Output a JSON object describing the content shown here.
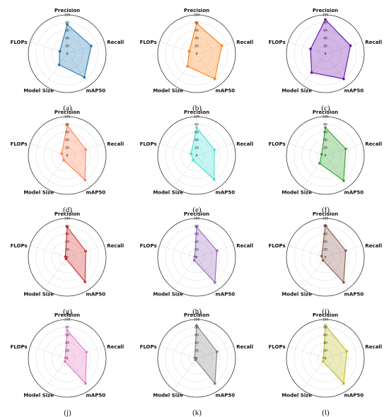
{
  "axes": [
    "Precision",
    "Recall",
    "mAP50",
    "Model Size",
    "FLOPs"
  ],
  "ticks": [
    "0",
    "20",
    "40",
    "60",
    "80",
    "100"
  ],
  "chart_data": [
    {
      "type": "radar",
      "caption": "(a)",
      "color": "#1f77b4",
      "rmax": 100,
      "categories": [
        "Precision",
        "Recall",
        "mAP50",
        "Model Size",
        "FLOPs"
      ],
      "values": [
        75,
        65,
        75,
        35,
        20
      ],
      "grid": true
    },
    {
      "type": "radar",
      "caption": "(b)",
      "color": "#ff7f0e",
      "rmax": 100,
      "categories": [
        "Precision",
        "Recall",
        "mAP50",
        "Model Size",
        "FLOPs"
      ],
      "values": [
        78,
        68,
        80,
        40,
        20
      ],
      "grid": true
    },
    {
      "type": "radar",
      "caption": "(c)",
      "color": "#6a0dad",
      "rmax": 100,
      "categories": [
        "Precision",
        "Recall",
        "mAP50",
        "Model Size",
        "FLOPs"
      ],
      "values": [
        88,
        68,
        80,
        60,
        40
      ],
      "grid": true
    },
    {
      "type": "radar",
      "caption": "(d)",
      "color": "#ff7f50",
      "rmax": 100,
      "categories": [
        "Precision",
        "Recall",
        "mAP50",
        "Model Size",
        "FLOPs"
      ],
      "values": [
        78,
        50,
        78,
        15,
        15
      ],
      "grid": true
    },
    {
      "type": "radar",
      "caption": "(e)",
      "color": "#40e0d0",
      "rmax": 100,
      "categories": [
        "Precision",
        "Recall",
        "mAP50",
        "Model Size",
        "FLOPs"
      ],
      "values": [
        72,
        48,
        76,
        15,
        15
      ],
      "grid": true
    },
    {
      "type": "radar",
      "caption": "(f)",
      "color": "#2ca02c",
      "rmax": 100,
      "categories": [
        "Precision",
        "Recall",
        "mAP50",
        "Model Size",
        "FLOPs"
      ],
      "values": [
        72,
        55,
        80,
        25,
        10
      ],
      "grid": true
    },
    {
      "type": "radar",
      "caption": "(g)",
      "color": "#d62728",
      "rmax": 100,
      "categories": [
        "Precision",
        "Recall",
        "mAP50",
        "Model Size",
        "FLOPs"
      ],
      "values": [
        78,
        50,
        78,
        5,
        5
      ],
      "grid": true
    },
    {
      "type": "radar",
      "caption": "(h)",
      "color": "#9467bd",
      "rmax": 100,
      "categories": [
        "Precision",
        "Recall",
        "mAP50",
        "Model Size",
        "FLOPs"
      ],
      "values": [
        78,
        55,
        80,
        10,
        5
      ],
      "grid": true
    },
    {
      "type": "radar",
      "caption": "(i)",
      "color": "#8c564b",
      "rmax": 100,
      "categories": [
        "Precision",
        "Recall",
        "mAP50",
        "Model Size",
        "FLOPs"
      ],
      "values": [
        82,
        55,
        80,
        10,
        10
      ],
      "grid": true
    },
    {
      "type": "radar",
      "caption": "(j)",
      "color": "#e377c2",
      "rmax": 100,
      "categories": [
        "Precision",
        "Recall",
        "mAP50",
        "Model Size",
        "FLOPs"
      ],
      "values": [
        72,
        52,
        80,
        10,
        5
      ],
      "grid": true
    },
    {
      "type": "radar",
      "caption": "(k)",
      "color": "#7f7f7f",
      "rmax": 100,
      "categories": [
        "Precision",
        "Recall",
        "mAP50",
        "Model Size",
        "FLOPs"
      ],
      "values": [
        85,
        55,
        80,
        5,
        5
      ],
      "grid": true
    },
    {
      "type": "radar",
      "caption": "(l)",
      "color": "#bcbd22",
      "rmax": 100,
      "categories": [
        "Precision",
        "Recall",
        "mAP50",
        "Model Size",
        "FLOPs"
      ],
      "values": [
        85,
        58,
        80,
        10,
        5
      ],
      "grid": true
    }
  ]
}
